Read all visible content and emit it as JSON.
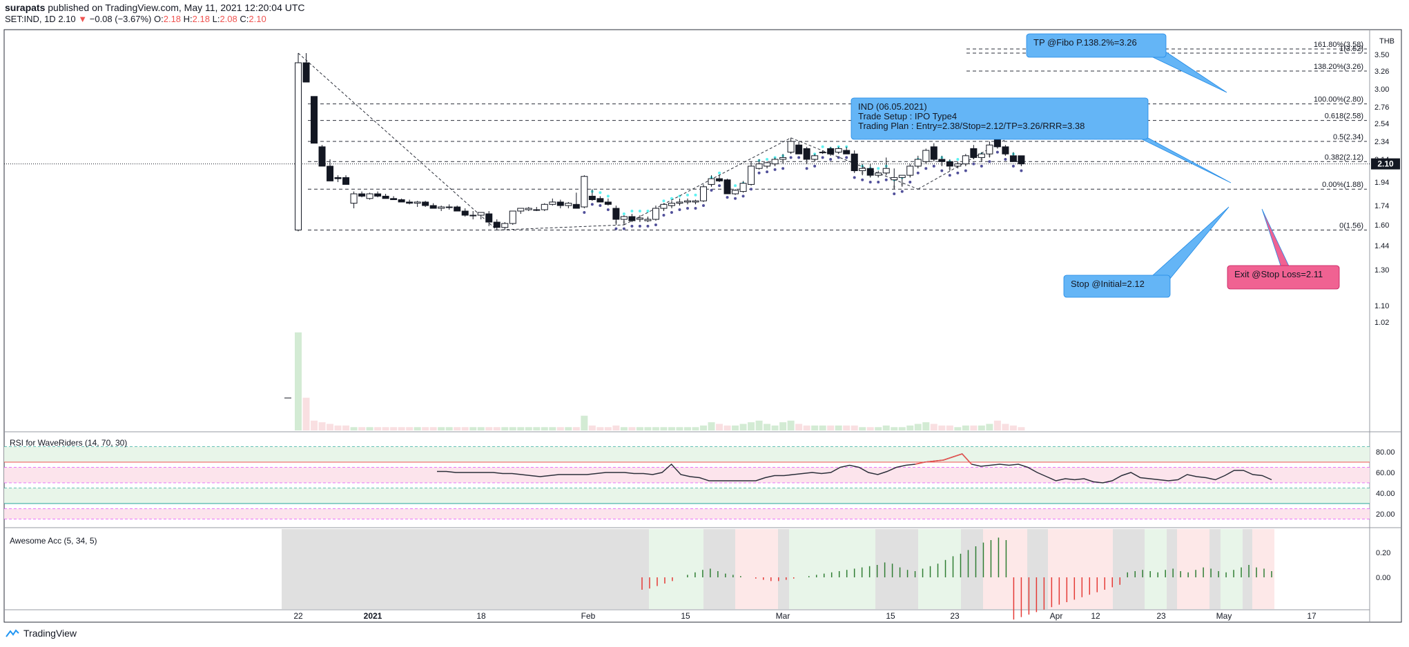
{
  "header": {
    "author": "surapats",
    "published": "published on TradingView.com, May 11, 2021 12:20:04 UTC",
    "symbol": "SET:IND, 1D",
    "last": "2.10",
    "change": "−0.08 (−3.67%)",
    "o_label": "O:",
    "o": "2.18",
    "h_label": "H:",
    "h": "2.18",
    "l_label": "L:",
    "l": "2.08",
    "c_label": "C:",
    "c": "2.10"
  },
  "footer": {
    "brand": "TradingView"
  },
  "colors": {
    "up": "#ffffff",
    "down": "#131722",
    "cyan": "#5ff2f2",
    "purple": "#51509a",
    "grey_dots": "#cfcfcf",
    "callout_blue": "#64b5f6",
    "callout_pink": "#f06292",
    "rsi_line": "#2a2e39"
  },
  "chart_data": [
    {
      "type": "candlestick",
      "currency": "THB",
      "y_ticks": [
        "3.50",
        "3.26",
        "3.00",
        "2.76",
        "2.54",
        "2.34",
        "2.14",
        "1.94",
        "1.74",
        "1.60",
        "1.44",
        "1.30",
        "1.10",
        "1.02"
      ],
      "x_ticks": [
        "22",
        "2021",
        "18",
        "Feb",
        "15",
        "Mar",
        "15",
        "23",
        "Apr",
        "12",
        "23",
        "May",
        "17"
      ],
      "last_price_label": "2.10",
      "fib_levels": [
        {
          "label": "161.80%(3.58)",
          "value": 3.58
        },
        {
          "label": "1(3.52)",
          "value": 3.52
        },
        {
          "label": "138.20%(3.26)",
          "value": 3.26
        },
        {
          "label": "100.00%(2.80)",
          "value": 2.8
        },
        {
          "label": "0.618(2.58)",
          "value": 2.58
        },
        {
          "label": "0.5(2.34)",
          "value": 2.34
        },
        {
          "label": "0.382(2.12)",
          "value": 2.12
        },
        {
          "label": "0.00%(1.88)",
          "value": 1.88
        },
        {
          "label": "0(1.56)",
          "value": 1.56
        }
      ],
      "candles": [
        [
          1.56,
          3.52,
          1.55,
          3.38
        ],
        [
          3.38,
          3.52,
          3.1,
          3.1
        ],
        [
          2.9,
          2.9,
          2.32,
          2.32
        ],
        [
          2.28,
          2.3,
          2.08,
          2.08
        ],
        [
          2.08,
          2.14,
          1.95,
          1.95
        ],
        [
          1.98,
          2.0,
          1.94,
          1.97
        ],
        [
          1.98,
          2.0,
          1.92,
          1.92
        ],
        [
          1.76,
          1.86,
          1.72,
          1.84
        ],
        [
          1.84,
          1.86,
          1.81,
          1.82
        ],
        [
          1.8,
          1.85,
          1.79,
          1.84
        ],
        [
          1.84,
          1.86,
          1.81,
          1.82
        ],
        [
          1.82,
          1.84,
          1.8,
          1.8
        ],
        [
          1.8,
          1.82,
          1.79,
          1.79
        ],
        [
          1.79,
          1.8,
          1.78,
          1.77
        ],
        [
          1.77,
          1.79,
          1.75,
          1.76
        ],
        [
          1.76,
          1.78,
          1.73,
          1.77
        ],
        [
          1.77,
          1.78,
          1.73,
          1.74
        ],
        [
          1.74,
          1.76,
          1.72,
          1.72
        ],
        [
          1.72,
          1.74,
          1.7,
          1.73
        ],
        [
          1.73,
          1.75,
          1.71,
          1.73
        ],
        [
          1.73,
          1.74,
          1.7,
          1.7
        ],
        [
          1.7,
          1.72,
          1.66,
          1.67
        ],
        [
          1.67,
          1.7,
          1.64,
          1.67
        ],
        [
          1.67,
          1.69,
          1.64,
          1.69
        ],
        [
          1.68,
          1.7,
          1.59,
          1.62
        ],
        [
          1.62,
          1.64,
          1.56,
          1.58
        ],
        [
          1.58,
          1.62,
          1.56,
          1.61
        ],
        [
          1.61,
          1.7,
          1.6,
          1.7
        ],
        [
          1.7,
          1.72,
          1.68,
          1.72
        ],
        [
          1.71,
          1.73,
          1.7,
          1.72
        ],
        [
          1.71,
          1.73,
          1.7,
          1.71
        ],
        [
          1.71,
          1.76,
          1.7,
          1.75
        ],
        [
          1.75,
          1.8,
          1.74,
          1.77
        ],
        [
          1.77,
          1.79,
          1.72,
          1.74
        ],
        [
          1.74,
          1.77,
          1.72,
          1.76
        ],
        [
          1.75,
          1.85,
          1.72,
          1.72
        ],
        [
          1.73,
          2.0,
          1.72,
          1.99
        ],
        [
          1.82,
          1.88,
          1.78,
          1.79
        ],
        [
          1.8,
          1.82,
          1.77,
          1.77
        ],
        [
          1.77,
          1.8,
          1.74,
          1.75
        ],
        [
          1.72,
          1.74,
          1.6,
          1.64
        ],
        [
          1.64,
          1.67,
          1.6,
          1.66
        ],
        [
          1.66,
          1.68,
          1.62,
          1.63
        ],
        [
          1.64,
          1.67,
          1.62,
          1.65
        ],
        [
          1.63,
          1.66,
          1.62,
          1.64
        ],
        [
          1.64,
          1.74,
          1.63,
          1.72
        ],
        [
          1.72,
          1.76,
          1.7,
          1.75
        ],
        [
          1.74,
          1.78,
          1.72,
          1.76
        ],
        [
          1.76,
          1.8,
          1.74,
          1.77
        ],
        [
          1.77,
          1.8,
          1.75,
          1.78
        ],
        [
          1.77,
          1.79,
          1.75,
          1.78
        ],
        [
          1.78,
          1.92,
          1.77,
          1.9
        ],
        [
          1.92,
          2.0,
          1.9,
          1.97
        ],
        [
          1.97,
          2.0,
          1.94,
          1.95
        ],
        [
          1.96,
          1.97,
          1.84,
          1.84
        ],
        [
          1.84,
          1.88,
          1.83,
          1.87
        ],
        [
          1.86,
          1.95,
          1.85,
          1.93
        ],
        [
          1.92,
          2.12,
          1.91,
          2.08
        ],
        [
          2.06,
          2.14,
          2.05,
          2.1
        ],
        [
          2.08,
          2.12,
          2.06,
          2.11
        ],
        [
          2.1,
          2.16,
          2.08,
          2.14
        ],
        [
          2.14,
          2.2,
          2.1,
          2.16
        ],
        [
          2.22,
          2.38,
          2.2,
          2.34
        ],
        [
          2.3,
          2.34,
          2.2,
          2.2
        ],
        [
          2.26,
          2.28,
          2.1,
          2.14
        ],
        [
          2.14,
          2.2,
          2.12,
          2.18
        ],
        [
          2.22,
          2.24,
          2.2,
          2.22
        ],
        [
          2.26,
          2.28,
          2.18,
          2.2
        ],
        [
          2.22,
          2.28,
          2.2,
          2.26
        ],
        [
          2.24,
          2.28,
          2.2,
          2.2
        ],
        [
          2.2,
          2.24,
          2.02,
          2.04
        ],
        [
          2.04,
          2.1,
          2.0,
          2.06
        ],
        [
          2.06,
          2.1,
          1.98,
          2.0
        ],
        [
          2.0,
          2.04,
          1.98,
          2.02
        ],
        [
          2.02,
          2.16,
          2.0,
          2.06
        ],
        [
          1.96,
          2.06,
          1.88,
          1.98
        ],
        [
          1.98,
          2.0,
          1.9,
          2.0
        ],
        [
          2.0,
          2.1,
          1.98,
          2.08
        ],
        [
          2.08,
          2.18,
          2.06,
          2.14
        ],
        [
          2.12,
          2.26,
          2.1,
          2.24
        ],
        [
          2.28,
          2.32,
          2.12,
          2.14
        ],
        [
          2.14,
          2.18,
          2.08,
          2.12
        ],
        [
          2.12,
          2.14,
          2.04,
          2.08
        ],
        [
          2.08,
          2.12,
          2.06,
          2.1
        ],
        [
          2.1,
          2.2,
          2.08,
          2.18
        ],
        [
          2.26,
          2.3,
          2.14,
          2.16
        ],
        [
          2.16,
          2.22,
          2.12,
          2.2
        ],
        [
          2.2,
          2.34,
          2.16,
          2.3
        ],
        [
          2.38,
          2.46,
          2.26,
          2.28
        ],
        [
          2.28,
          2.3,
          2.18,
          2.2
        ],
        [
          2.18,
          2.22,
          2.12,
          2.12
        ],
        [
          2.18,
          2.18,
          2.08,
          2.1
        ]
      ],
      "volume": [
        0.6,
        0.2,
        0.06,
        0.05,
        0.04,
        0.03,
        0.03,
        0.02,
        0.02,
        0.02,
        0.02,
        0.02,
        0.02,
        0.02,
        0.02,
        0.02,
        0.02,
        0.02,
        0.02,
        0.02,
        0.02,
        0.02,
        0.02,
        0.02,
        0.02,
        0.02,
        0.02,
        0.02,
        0.02,
        0.02,
        0.02,
        0.02,
        0.02,
        0.02,
        0.02,
        0.02,
        0.09,
        0.03,
        0.02,
        0.02,
        0.03,
        0.02,
        0.02,
        0.02,
        0.02,
        0.02,
        0.02,
        0.02,
        0.02,
        0.02,
        0.02,
        0.03,
        0.05,
        0.04,
        0.03,
        0.03,
        0.04,
        0.05,
        0.06,
        0.04,
        0.03,
        0.05,
        0.06,
        0.04,
        0.03,
        0.03,
        0.03,
        0.03,
        0.03,
        0.03,
        0.03,
        0.02,
        0.02,
        0.02,
        0.03,
        0.02,
        0.02,
        0.03,
        0.04,
        0.05,
        0.04,
        0.03,
        0.03,
        0.02,
        0.03,
        0.03,
        0.03,
        0.04,
        0.06,
        0.04,
        0.03,
        0.02
      ],
      "annotations": [
        {
          "text": "TP @Fibo P.138.2%=3.26",
          "color": "#64b5f6"
        },
        {
          "text": "IND (06.05.2021)",
          "color": "#64b5f6"
        },
        {
          "text": "Trade Setup : IPO Type4",
          "color": "#64b5f6"
        },
        {
          "text": "Trading Plan : Entry=2.38/Stop=2.12/TP=3.26/RRR=3.38",
          "color": "#64b5f6"
        },
        {
          "text": "Stop @Initial=2.12",
          "color": "#64b5f6"
        },
        {
          "text": "Exit @Stop Loss=2.11",
          "color": "#f06292"
        }
      ]
    },
    {
      "type": "line",
      "title": "RSI for WaveRiders (14, 70, 30)",
      "y_ticks": [
        "80.00",
        "60.00",
        "40.00",
        "20.00"
      ],
      "bands": [
        85,
        70,
        65,
        50,
        45,
        30,
        25,
        15
      ],
      "values": [
        61,
        61,
        60,
        60,
        60,
        60,
        60,
        59,
        59,
        58,
        57,
        56,
        57,
        58,
        58,
        58,
        58,
        59,
        60,
        60,
        60,
        59,
        59,
        58,
        60,
        68,
        58,
        56,
        55,
        52,
        52,
        52,
        52,
        52,
        52,
        55,
        57,
        57,
        58,
        59,
        60,
        59,
        60,
        65,
        67,
        65,
        60,
        58,
        61,
        65,
        67,
        68,
        70,
        71,
        72,
        75,
        78,
        68,
        66,
        67,
        68,
        67,
        68,
        65,
        60,
        56,
        52,
        54,
        53,
        54,
        51,
        50,
        52,
        57,
        60,
        55,
        54,
        53,
        52,
        53,
        58,
        56,
        55,
        53,
        57,
        62,
        62,
        58,
        57,
        53
      ]
    },
    {
      "type": "bar",
      "title": "Awesome Acc (5, 34, 5)",
      "y_ticks": [
        "0.20",
        "0.00"
      ],
      "values": [
        -0.1,
        -0.09,
        -0.07,
        -0.05,
        -0.03,
        0.0,
        0.02,
        0.04,
        0.06,
        0.07,
        0.05,
        0.03,
        0.02,
        0.01,
        0.0,
        -0.01,
        -0.02,
        -0.03,
        -0.03,
        -0.02,
        -0.01,
        0.0,
        0.01,
        0.02,
        0.03,
        0.04,
        0.05,
        0.06,
        0.07,
        0.08,
        0.09,
        0.1,
        0.12,
        0.11,
        0.08,
        0.06,
        0.05,
        0.07,
        0.09,
        0.11,
        0.14,
        0.17,
        0.19,
        0.22,
        0.25,
        0.28,
        0.3,
        0.32,
        0.3,
        -0.34,
        -0.32,
        -0.3,
        -0.28,
        -0.26,
        -0.24,
        -0.22,
        -0.2,
        -0.18,
        -0.16,
        -0.14,
        -0.12,
        -0.1,
        -0.08,
        -0.06,
        0.04,
        0.05,
        0.06,
        0.05,
        0.04,
        0.06,
        0.07,
        0.05,
        0.04,
        0.06,
        0.08,
        0.07,
        0.05,
        0.04,
        0.06,
        0.08,
        0.1,
        0.08,
        0.07,
        0.05
      ]
    }
  ]
}
